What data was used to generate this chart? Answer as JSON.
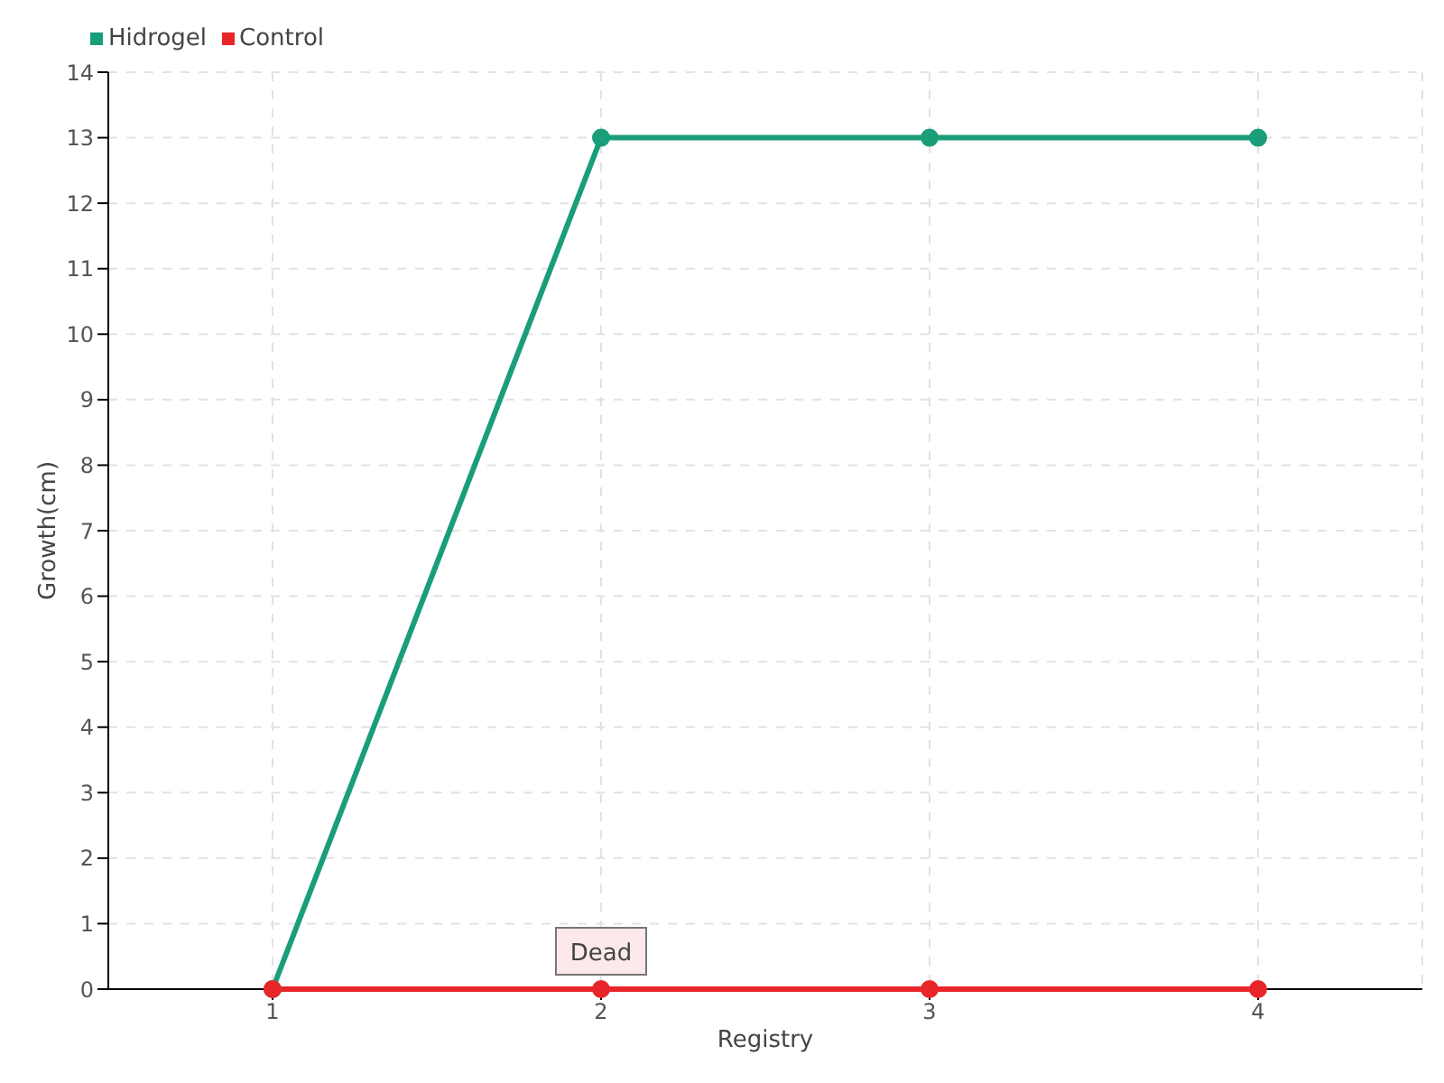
{
  "chart_data": {
    "type": "line",
    "xlabel": "Registry",
    "ylabel": "Growth(cm)",
    "x": [
      1,
      2,
      3,
      4
    ],
    "series": [
      {
        "name": "Hidrogel",
        "color": "#1a9e7a",
        "values": [
          0,
          13,
          13,
          13
        ]
      },
      {
        "name": "Control",
        "color": "#e8262a",
        "values": [
          0,
          0,
          0,
          0
        ]
      }
    ],
    "xlim": [
      0.5,
      4.5
    ],
    "xticks": [
      1,
      2,
      3,
      4
    ],
    "ylim": [
      0,
      14
    ],
    "yticks": [
      0,
      1,
      2,
      3,
      4,
      5,
      6,
      7,
      8,
      9,
      10,
      11,
      12,
      13,
      14
    ],
    "grid": true,
    "legend": "top left",
    "marker": "circle",
    "line_style": "solid",
    "annotations": [
      {
        "text": "Dead",
        "x": 2,
        "y": 0
      }
    ]
  }
}
